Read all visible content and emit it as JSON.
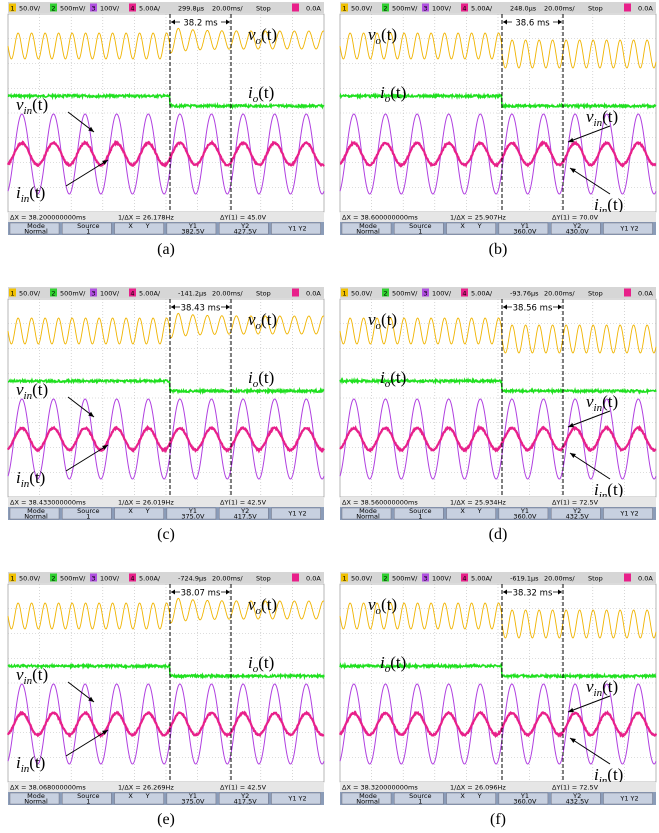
{
  "panels": [
    {
      "label": "(a)",
      "status": {
        "channels": [
          {
            "num": "1",
            "scale": "50.0V/"
          },
          {
            "num": "2",
            "scale": "500mV/"
          },
          {
            "num": "3",
            "scale": "100V/"
          },
          {
            "num": "4",
            "scale": "5.00A/"
          }
        ],
        "delay": "299.8µs",
        "timebase": "20.00ms/",
        "run": "Stop",
        "trigger_level": "0.0A"
      },
      "interval": "38.2 ms",
      "measurements": [
        "ΔX = 38.200000000ms",
        "1/ΔX = 26.178Hz",
        "ΔY(1) = 45.0V"
      ],
      "softkeys": [
        {
          "top": "Mode",
          "bottom": "Normal"
        },
        {
          "top": "Source",
          "bottom": "1"
        },
        {
          "top": "X",
          "bottom": "Y"
        },
        {
          "top": "Y1",
          "bottom": "382.5V"
        },
        {
          "top": "Y2",
          "bottom": "427.5V"
        },
        {
          "top": "Y1 Y2"
        }
      ],
      "signals": [
        {
          "base": "v",
          "sub": "o",
          "arg": "(t)"
        },
        {
          "base": "i",
          "sub": "o",
          "arg": "(t)"
        },
        {
          "base": "v",
          "sub": "in",
          "arg": "(t)"
        },
        {
          "base": "i",
          "sub": "in",
          "arg": "(t)"
        }
      ]
    },
    {
      "label": "(b)",
      "status": {
        "channels": [
          {
            "num": "1",
            "scale": "50.0V/"
          },
          {
            "num": "2",
            "scale": "500mV/"
          },
          {
            "num": "3",
            "scale": "100V/"
          },
          {
            "num": "4",
            "scale": "5.00A/"
          }
        ],
        "delay": "248.0µs",
        "timebase": "20.00ms/",
        "run": "Stop",
        "trigger_level": "0.0A"
      },
      "interval": "38.6 ms",
      "measurements": [
        "ΔX = 38.600000000ms",
        "1/ΔX = 25.907Hz",
        "ΔY(1) = 70.0V"
      ],
      "softkeys": [
        {
          "top": "Mode",
          "bottom": "Normal"
        },
        {
          "top": "Source",
          "bottom": "1"
        },
        {
          "top": "X",
          "bottom": "Y"
        },
        {
          "top": "Y1",
          "bottom": "360.0V"
        },
        {
          "top": "Y2",
          "bottom": "430.0V"
        },
        {
          "top": "Y1 Y2"
        }
      ],
      "signals": [
        {
          "base": "v",
          "sub": "o",
          "arg": "(t)"
        },
        {
          "base": "i",
          "sub": "o",
          "arg": "(t)"
        },
        {
          "base": "v",
          "sub": "in",
          "arg": "(t)"
        },
        {
          "base": "i",
          "sub": "in",
          "arg": "(t)"
        }
      ]
    },
    {
      "label": "(c)",
      "status": {
        "channels": [
          {
            "num": "1",
            "scale": "50.0V/"
          },
          {
            "num": "2",
            "scale": "500mV/"
          },
          {
            "num": "3",
            "scale": "100V/"
          },
          {
            "num": "4",
            "scale": "5.00A/"
          }
        ],
        "delay": "-141.2µs",
        "timebase": "20.00ms/",
        "run": "Stop",
        "trigger_level": "0.0A"
      },
      "interval": "38.43 ms",
      "measurements": [
        "ΔX = 38.433000000ms",
        "1/ΔX = 26.019Hz",
        "ΔY(1) = 42.5V"
      ],
      "softkeys": [
        {
          "top": "Mode",
          "bottom": "Normal"
        },
        {
          "top": "Source",
          "bottom": "1"
        },
        {
          "top": "X",
          "bottom": "Y"
        },
        {
          "top": "Y1",
          "bottom": "375.0V"
        },
        {
          "top": "Y2",
          "bottom": "417.5V"
        },
        {
          "top": "Y1 Y2"
        }
      ],
      "signals": [
        {
          "base": "v",
          "sub": "o",
          "arg": "(t)"
        },
        {
          "base": "i",
          "sub": "o",
          "arg": "(t)"
        },
        {
          "base": "v",
          "sub": "in",
          "arg": "(t)"
        },
        {
          "base": "i",
          "sub": "in",
          "arg": "(t)"
        }
      ]
    },
    {
      "label": "(d)",
      "status": {
        "channels": [
          {
            "num": "1",
            "scale": "50.0V/"
          },
          {
            "num": "2",
            "scale": "500mV/"
          },
          {
            "num": "3",
            "scale": "100V/"
          },
          {
            "num": "4",
            "scale": "5.00A/"
          }
        ],
        "delay": "-93.76µs",
        "timebase": "20.00ms/",
        "run": "Stop",
        "trigger_level": "0.0A"
      },
      "interval": "38.56 ms",
      "measurements": [
        "ΔX = 38.560000000ms",
        "1/ΔX = 25.934Hz",
        "ΔY(1) = 72.5V"
      ],
      "softkeys": [
        {
          "top": "Mode",
          "bottom": "Normal"
        },
        {
          "top": "Source",
          "bottom": "1"
        },
        {
          "top": "X",
          "bottom": "Y"
        },
        {
          "top": "Y1",
          "bottom": "360.0V"
        },
        {
          "top": "Y2",
          "bottom": "432.5V"
        },
        {
          "top": "Y1 Y2"
        }
      ],
      "signals": [
        {
          "base": "v",
          "sub": "o",
          "arg": "(t)"
        },
        {
          "base": "i",
          "sub": "o",
          "arg": "(t)"
        },
        {
          "base": "v",
          "sub": "in",
          "arg": "(t)"
        },
        {
          "base": "i",
          "sub": "in",
          "arg": "(t)"
        }
      ]
    },
    {
      "label": "(e)",
      "status": {
        "channels": [
          {
            "num": "1",
            "scale": "50.0V/"
          },
          {
            "num": "2",
            "scale": "500mV/"
          },
          {
            "num": "3",
            "scale": "100V/"
          },
          {
            "num": "4",
            "scale": "5.00A/"
          }
        ],
        "delay": "-724.9µs",
        "timebase": "20.00ms/",
        "run": "Stop",
        "trigger_level": "0.0A"
      },
      "interval": "38.07 ms",
      "measurements": [
        "ΔX = 38.068000000ms",
        "1/ΔX = 26.269Hz",
        "ΔY(1) = 42.5V"
      ],
      "softkeys": [
        {
          "top": "Mode",
          "bottom": "Normal"
        },
        {
          "top": "Source",
          "bottom": "1"
        },
        {
          "top": "X",
          "bottom": "Y"
        },
        {
          "top": "Y1",
          "bottom": "375.0V"
        },
        {
          "top": "Y2",
          "bottom": "417.5V"
        },
        {
          "top": "Y1 Y2"
        }
      ],
      "signals": [
        {
          "base": "v",
          "sub": "o",
          "arg": "(t)"
        },
        {
          "base": "i",
          "sub": "o",
          "arg": "(t)"
        },
        {
          "base": "v",
          "sub": "in",
          "arg": "(t)"
        },
        {
          "base": "i",
          "sub": "in",
          "arg": "(t)"
        }
      ]
    },
    {
      "label": "(f)",
      "status": {
        "channels": [
          {
            "num": "1",
            "scale": "50.0V/"
          },
          {
            "num": "2",
            "scale": "500mV/"
          },
          {
            "num": "3",
            "scale": "100V/"
          },
          {
            "num": "4",
            "scale": "5.00A/"
          }
        ],
        "delay": "-619.1µs",
        "timebase": "20.00ms/",
        "run": "Stop",
        "trigger_level": "0.0A"
      },
      "interval": "38.32 ms",
      "measurements": [
        "ΔX = 38.320000000ms",
        "1/ΔX = 26.096Hz",
        "ΔY(1) = 72.5V"
      ],
      "softkeys": [
        {
          "top": "Mode",
          "bottom": "Normal"
        },
        {
          "top": "Source",
          "bottom": "1"
        },
        {
          "top": "X",
          "bottom": "Y"
        },
        {
          "top": "Y1",
          "bottom": "360.0V"
        },
        {
          "top": "Y2",
          "bottom": "432.5V"
        },
        {
          "top": "Y1 Y2"
        }
      ],
      "signals": [
        {
          "base": "v",
          "sub": "o",
          "arg": "(t)"
        },
        {
          "base": "i",
          "sub": "o",
          "arg": "(t)"
        },
        {
          "base": "v",
          "sub": "in",
          "arg": "(t)"
        },
        {
          "base": "i",
          "sub": "in",
          "arg": "(t)"
        }
      ]
    }
  ]
}
